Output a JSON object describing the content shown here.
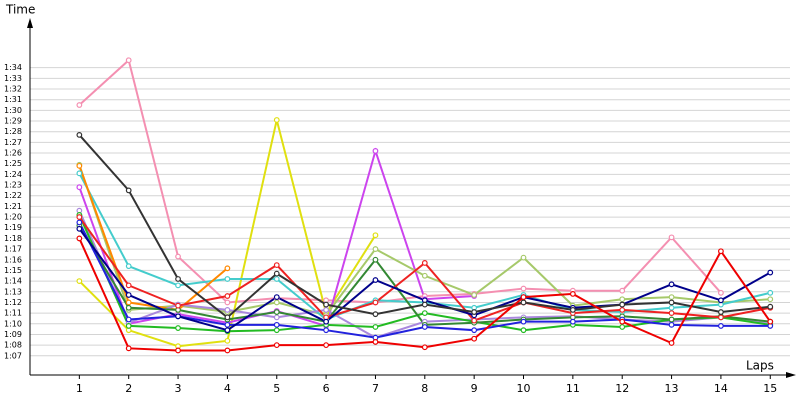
{
  "chart_data": {
    "type": "line",
    "x_label": "Laps",
    "y_label": "Time",
    "x": [
      1,
      2,
      3,
      4,
      5,
      6,
      7,
      8,
      9,
      10,
      11,
      12,
      13,
      14,
      15
    ],
    "xlim": [
      0,
      15.4
    ],
    "xticks": [
      1,
      2,
      3,
      4,
      5,
      6,
      7,
      8,
      9,
      10,
      11,
      12,
      13,
      14,
      15
    ],
    "ylim": [
      65.2,
      98
    ],
    "yticks": [
      {
        "value": 67,
        "label": "1:07"
      },
      {
        "value": 68,
        "label": "1:08"
      },
      {
        "value": 69,
        "label": "1:09"
      },
      {
        "value": 70,
        "label": "1:10"
      },
      {
        "value": 71,
        "label": "1:11"
      },
      {
        "value": 72,
        "label": "1:12"
      },
      {
        "value": 73,
        "label": "1:13"
      },
      {
        "value": 74,
        "label": "1:14"
      },
      {
        "value": 75,
        "label": "1:15"
      },
      {
        "value": 76,
        "label": "1:16"
      },
      {
        "value": 77,
        "label": "1:17"
      },
      {
        "value": 78,
        "label": "1:18"
      },
      {
        "value": 79,
        "label": "1:19"
      },
      {
        "value": 80,
        "label": "1:20"
      },
      {
        "value": 81,
        "label": "1:21"
      },
      {
        "value": 82,
        "label": "1:22"
      },
      {
        "value": 83,
        "label": "1:23"
      },
      {
        "value": 84,
        "label": "1:24"
      },
      {
        "value": 85,
        "label": "1:25"
      },
      {
        "value": 86,
        "label": "1:26"
      },
      {
        "value": 87,
        "label": "1:27"
      },
      {
        "value": 88,
        "label": "1:28"
      },
      {
        "value": 89,
        "label": "1:29"
      },
      {
        "value": 90,
        "label": "1:30"
      },
      {
        "value": 91,
        "label": "1:31"
      },
      {
        "value": 92,
        "label": "1:32"
      },
      {
        "value": 93,
        "label": "1:33"
      },
      {
        "value": 94,
        "label": "1:34"
      }
    ],
    "grid": true,
    "series": [
      {
        "color": "#f48fb1",
        "values": [
          90.5,
          94.7,
          76.3,
          72.0,
          72.4,
          72.2,
          72.0,
          72.6,
          72.8,
          73.3,
          73.1,
          73.1,
          78.1,
          72.9,
          null
        ]
      },
      {
        "color": "#e0e010",
        "values": [
          74.0,
          69.4,
          67.9,
          68.4,
          89.1,
          71.0,
          78.3,
          null,
          null,
          null,
          null,
          null,
          null,
          null,
          null
        ]
      },
      {
        "color": "#cc44ee",
        "values": [
          82.8,
          70.0,
          70.9,
          70.1,
          71.2,
          69.8,
          86.2,
          72.3,
          72.6,
          null,
          null,
          null,
          null,
          null,
          null
        ]
      },
      {
        "color": "#a6c96a",
        "values": [
          84.9,
          71.3,
          71.7,
          71.1,
          72.0,
          70.8,
          77.0,
          74.5,
          72.7,
          76.2,
          71.7,
          72.3,
          72.5,
          72.0,
          72.3
        ]
      },
      {
        "color": "#44cccc",
        "values": [
          84.1,
          75.4,
          73.6,
          74.2,
          74.2,
          70.4,
          72.2,
          72.0,
          71.5,
          72.7,
          71.3,
          71.1,
          71.5,
          71.8,
          72.9
        ]
      },
      {
        "color": "#ff8800",
        "values": [
          84.8,
          72.0,
          71.3,
          75.2,
          null,
          null,
          null,
          null,
          null,
          null,
          null,
          null,
          null,
          null,
          null
        ]
      },
      {
        "color": "#aa88dd",
        "values": [
          80.6,
          70.1,
          71.8,
          71.3,
          70.6,
          71.3,
          68.7,
          70.2,
          70.4,
          70.6,
          70.7,
          70.4,
          70.2,
          70.6,
          70.0
        ]
      },
      {
        "color": "#22bb22",
        "values": [
          80.2,
          69.8,
          69.6,
          69.3,
          69.4,
          69.9,
          69.7,
          71.0,
          70.2,
          69.4,
          69.9,
          69.7,
          70.4,
          70.6,
          69.9
        ]
      },
      {
        "color": "#338833",
        "values": [
          79.2,
          71.5,
          71.3,
          70.4,
          71.1,
          70.2,
          76.0,
          69.9,
          70.1,
          70.4,
          70.6,
          70.7,
          70.4,
          70.7,
          70.2
        ]
      },
      {
        "color": "#2222dd",
        "values": [
          79.5,
          70.4,
          70.7,
          69.9,
          69.9,
          69.4,
          68.7,
          69.7,
          69.4,
          70.2,
          70.2,
          70.4,
          69.9,
          69.8,
          69.8
        ]
      },
      {
        "color": "#ee2222",
        "values": [
          80.0,
          73.6,
          71.7,
          72.6,
          75.5,
          70.6,
          72.0,
          75.7,
          70.3,
          72.0,
          71.0,
          71.3,
          71.0,
          70.6,
          71.5
        ]
      },
      {
        "color": "#00008b",
        "values": [
          78.9,
          72.7,
          70.7,
          69.4,
          72.5,
          70.2,
          74.1,
          72.2,
          70.8,
          72.5,
          71.5,
          71.8,
          73.7,
          72.2,
          74.8
        ]
      },
      {
        "color": "#333333",
        "values": [
          87.7,
          82.5,
          74.2,
          70.6,
          74.7,
          71.8,
          70.9,
          71.8,
          71.1,
          72.0,
          71.3,
          71.8,
          72.0,
          71.1,
          71.6
        ]
      },
      {
        "color": "#ee0000",
        "values": [
          78.0,
          67.7,
          67.5,
          67.5,
          68.0,
          68.0,
          68.3,
          67.8,
          68.6,
          72.5,
          72.8,
          70.2,
          68.2,
          76.8,
          70.2
        ]
      }
    ]
  }
}
